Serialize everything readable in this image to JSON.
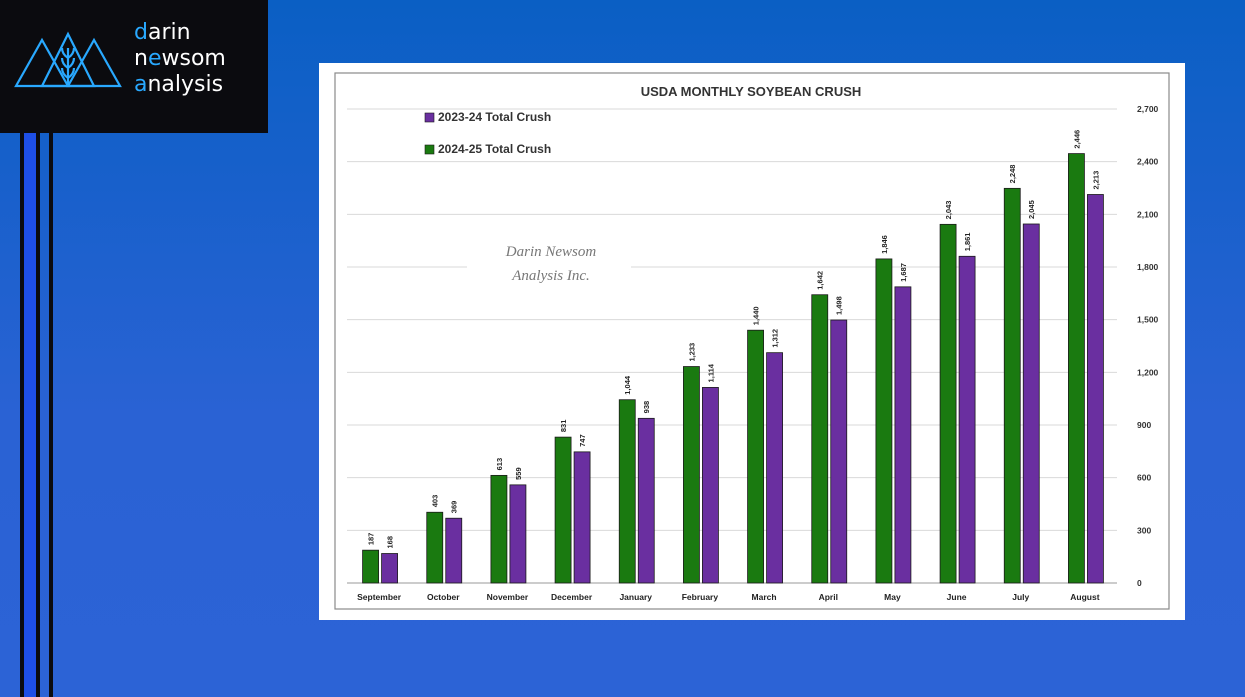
{
  "brand": {
    "line1_accent": "d",
    "line1_rest": "arin",
    "line2_pre": "n",
    "line2_accent": "e",
    "line2_mid": "w",
    "line2_rest": "som",
    "line3_accent": "a",
    "line3_rest": "nalysis",
    "accent_color": "#29a9ff"
  },
  "chart_data": {
    "type": "bar",
    "title": "USDA MONTHLY SOYBEAN CRUSH",
    "watermark": [
      "Darin Newsom",
      "Analysis Inc."
    ],
    "categories": [
      "September",
      "October",
      "November",
      "December",
      "January",
      "February",
      "March",
      "April",
      "May",
      "June",
      "July",
      "August"
    ],
    "series": [
      {
        "name": "2024-25 Total Crush",
        "color": "#1a7a10",
        "values": [
          187,
          403,
          613,
          831,
          1044,
          1233,
          1440,
          1642,
          1846,
          2043,
          2248,
          2446
        ],
        "labels": [
          "187",
          "403",
          "613",
          "831",
          "1,044",
          "1,233",
          "1,440",
          "1,642",
          "1,846",
          "2,043",
          "2,248",
          "2,446"
        ]
      },
      {
        "name": "2023-24 Total Crush",
        "color": "#6a2fa0",
        "values": [
          168,
          369,
          559,
          747,
          938,
          1114,
          1312,
          1498,
          1687,
          1861,
          2045,
          2213
        ],
        "labels": [
          "168",
          "369",
          "559",
          "747",
          "938",
          "1,114",
          "1,312",
          "1,498",
          "1,687",
          "1,861",
          "2,045",
          "2,213"
        ]
      }
    ],
    "legend_order": [
      "2023-24 Total Crush",
      "2024-25 Total Crush"
    ],
    "ylim": [
      0,
      2700
    ],
    "yticks": [
      0,
      300,
      600,
      900,
      1200,
      1500,
      1800,
      2100,
      2400,
      2700
    ],
    "ytick_labels": [
      "0",
      "300",
      "600",
      "900",
      "1,200",
      "1,500",
      "1,800",
      "2,100",
      "2,400",
      "2,700"
    ],
    "y_axis_side": "right",
    "grid": true,
    "legend_position": "top-left"
  }
}
